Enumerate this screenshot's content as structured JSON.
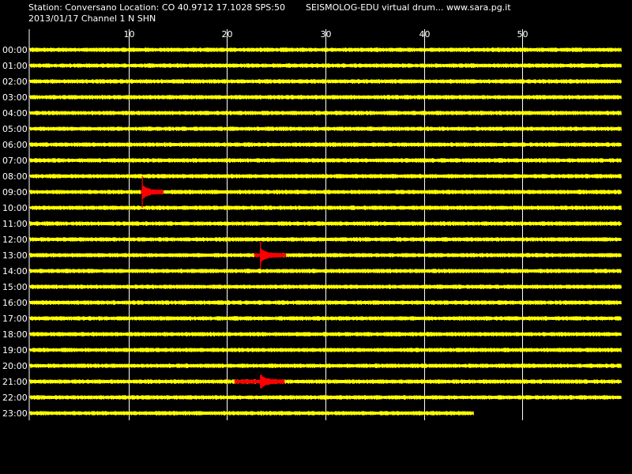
{
  "header": {
    "station_line": "Station: Conversano Location: CO 40.9712 17.1028 SPS:50",
    "title_line": "SEISMOLOG-EDU virtual drum... www.sara.pg.it",
    "date_line": "2013/01/17  Channel 1 N SHN"
  },
  "colors": {
    "background": "#000000",
    "trace": "#ffff00",
    "event": "#ff0000",
    "grid": "#ffffff",
    "text": "#ffffff"
  },
  "chart_data": {
    "type": "line",
    "title": "",
    "xlabel": "",
    "ylabel": "",
    "x_ticks": [
      10,
      20,
      30,
      40,
      50
    ],
    "xlim": [
      0,
      60
    ],
    "hour_labels": [
      "00:00",
      "01:00",
      "02:00",
      "03:00",
      "04:00",
      "05:00",
      "06:00",
      "07:00",
      "08:00",
      "09:00",
      "10:00",
      "11:00",
      "12:00",
      "13:00",
      "14:00",
      "15:00",
      "16:00",
      "17:00",
      "18:00",
      "19:00",
      "20:00",
      "21:00",
      "22:00",
      "23:00"
    ],
    "trace_end_minute_last_row": 45,
    "grid": true,
    "events": [
      {
        "row": "09:00",
        "start_min": 11.3,
        "end_min": 13.5,
        "peak_min": 11.4
      },
      {
        "row": "13:00",
        "start_min": 22.8,
        "end_min": 26.0,
        "peak_min": 23.4
      },
      {
        "row": "21:00",
        "start_min": 20.8,
        "end_min": 25.8,
        "peak_min": 23.4
      }
    ]
  }
}
